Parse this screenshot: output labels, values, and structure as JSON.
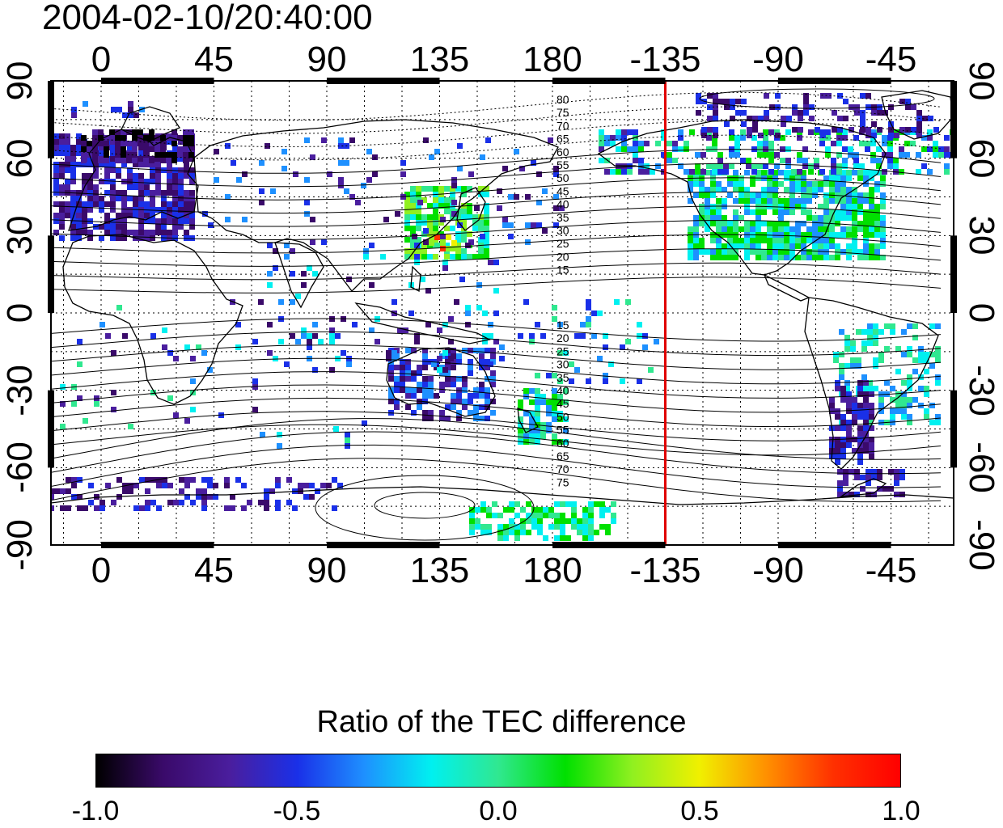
{
  "title": "2004-02-10/20:40:00",
  "x_ticks": [
    "0",
    "45",
    "90",
    "135",
    "180",
    "-135",
    "-90",
    "-45"
  ],
  "y_ticks_left": [
    "90",
    "60",
    "30",
    "0",
    "-30",
    "-60",
    "-90"
  ],
  "y_ticks_right": [
    "90",
    "60",
    "30",
    "0",
    "-30",
    "-60",
    "-90"
  ],
  "contour_labels_north": [
    "80",
    "75",
    "70",
    "65",
    "60",
    "55",
    "50",
    "45",
    "40",
    "35",
    "30",
    "25",
    "20",
    "15"
  ],
  "contour_labels_south": [
    "15",
    "20",
    "25",
    "30",
    "35",
    "40",
    "45",
    "50",
    "55",
    "60",
    "65",
    "70",
    "75"
  ],
  "marker_line": {
    "longitude": -135,
    "color": "#e00000"
  },
  "colorbar": {
    "label": "Ratio of the TEC difference",
    "ticks": [
      "-1.0",
      "-0.5",
      "0.0",
      "0.5",
      "1.0"
    ],
    "range": [
      -1.0,
      1.0
    ],
    "colors": [
      "#000000",
      "#3a0a6a",
      "#4a1e9e",
      "#1a30e8",
      "#1e90ff",
      "#00f0f0",
      "#30e890",
      "#00e000",
      "#90f020",
      "#f0f000",
      "#ff9000",
      "#ff3000",
      "#ff0000"
    ]
  },
  "map": {
    "lon_range": [
      -20,
      340
    ],
    "lat_range": [
      -90,
      90
    ],
    "grid_step": 15
  }
}
